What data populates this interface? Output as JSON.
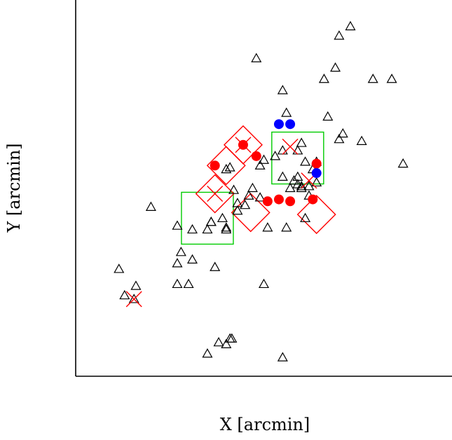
{
  "chart_data": {
    "type": "scatter",
    "title": "",
    "xlabel": "X [arcmin]",
    "ylabel": "Y [arcmin]",
    "xlim": [
      0,
      100
    ],
    "ylim": [
      0,
      100
    ],
    "grid": false,
    "ticks_shown": false,
    "colors": {
      "axis": "#000000",
      "triangle": "#000000",
      "red": "#ff0000",
      "blue": "#0000ff",
      "box": "#00cc00"
    },
    "series": [
      {
        "marker": "triangle",
        "x": [
          73.0,
          70.0,
          48.0,
          66.0,
          69.0,
          79.0,
          84.0,
          55.0,
          56.0,
          67.0,
          71.0,
          70.0,
          76.0,
          87.0,
          50.0,
          53.0,
          55.0,
          59.0,
          60.0,
          61.0,
          63.0,
          64.0,
          60.0,
          40.0,
          41.0,
          42.0,
          55.0,
          58.0,
          60.0,
          62.0,
          43.0,
          45.0,
          46.0,
          49.0,
          47.0,
          36.0,
          36.0,
          39.0,
          40.0,
          40.0,
          27.0,
          31.0,
          35.0,
          43.0,
          51.0,
          61.0,
          57.0,
          59.0,
          56.0,
          49.0,
          11.5,
          16.0,
          20.0,
          27.0,
          31.0,
          37.0,
          27.0,
          30.0,
          50.0,
          13.0,
          15.5,
          28.0,
          38.0,
          40.0,
          41.0,
          41.5,
          35.0,
          55.0,
          59.0,
          62.0,
          64.0
        ],
        "y": [
          93.0,
          90.5,
          84.5,
          79.0,
          82.0,
          79.0,
          79.0,
          76.0,
          70.0,
          69.0,
          64.5,
          63.0,
          62.5,
          56.5,
          57.5,
          58.5,
          60.0,
          60.0,
          62.0,
          57.0,
          55.0,
          57.0,
          50.0,
          55.0,
          55.5,
          49.5,
          53.0,
          52.0,
          50.5,
          48.0,
          46.0,
          45.5,
          48.0,
          47.5,
          50.0,
          41.0,
          41.0,
          42.0,
          39.5,
          39.0,
          40.0,
          39.0,
          39.0,
          44.0,
          39.5,
          42.0,
          50.0,
          51.0,
          39.5,
          56.0,
          28.5,
          24.0,
          45.0,
          30.0,
          31.0,
          29.0,
          24.5,
          24.5,
          24.5,
          21.5,
          20.5,
          33.0,
          9.0,
          8.5,
          10.0,
          10.0,
          6.0,
          5.0,
          53.0,
          50.5,
          51.5
        ]
      },
      {
        "marker": "filled-circle-red",
        "x": [
          44.5,
          37.0,
          48.0,
          51.0,
          57.0,
          63.0,
          54.0,
          64.0
        ],
        "y": [
          61.5,
          56.0,
          58.5,
          46.5,
          46.5,
          47.0,
          47.0,
          56.5
        ]
      },
      {
        "marker": "filled-circle-blue",
        "x": [
          54.0,
          57.0,
          64.0
        ],
        "y": [
          67.0,
          67.0,
          54.0
        ]
      },
      {
        "marker": "red-x",
        "x": [
          15.5,
          44.5,
          37.0,
          57.0,
          62.0
        ],
        "y": [
          20.5,
          61.5,
          48.5,
          61.0,
          52.0
        ]
      },
      {
        "marker": "red-diamond",
        "x": [
          44.5,
          40.0,
          37.0,
          46.5,
          64.0
        ],
        "y": [
          61.5,
          56.0,
          48.5,
          43.5,
          43.0
        ]
      },
      {
        "marker": "green-square",
        "x": [
          59.0,
          35.0
        ],
        "y": [
          58.0,
          42.0
        ]
      }
    ]
  }
}
